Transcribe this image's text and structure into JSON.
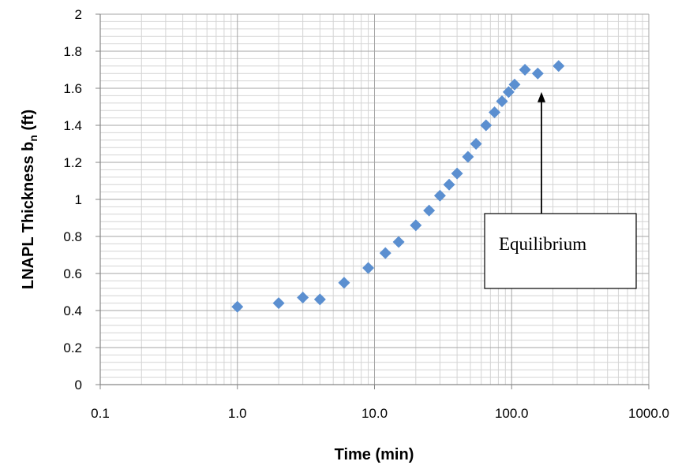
{
  "chart_data": {
    "type": "scatter",
    "x_scale": "log",
    "xlim": [
      0.1,
      1000
    ],
    "ylim": [
      0,
      2
    ],
    "grid": true,
    "marker": "diamond",
    "marker_color": "#5b8fd0",
    "xlabel": "Time (min)",
    "ylabel_main": "LNAPL Thickness b",
    "ylabel_sub": "n",
    "ylabel_unit": " (ft)",
    "x_tick_values": [
      0.1,
      1,
      10,
      100,
      1000
    ],
    "x_tick_labels": [
      "0.1",
      "1.0",
      "10.0",
      "100.0",
      "1000.0"
    ],
    "y_tick_values": [
      0,
      0.2,
      0.4,
      0.6,
      0.8,
      1,
      1.2,
      1.4,
      1.6,
      1.8,
      2
    ],
    "y_tick_labels": [
      "0",
      "0.2",
      "0.4",
      "0.6",
      "0.8",
      "1",
      "1.2",
      "1.4",
      "1.6",
      "1.8",
      "2"
    ],
    "points": [
      {
        "x": 1,
        "y": 0.42
      },
      {
        "x": 2,
        "y": 0.44
      },
      {
        "x": 3,
        "y": 0.47
      },
      {
        "x": 4,
        "y": 0.46
      },
      {
        "x": 6,
        "y": 0.55
      },
      {
        "x": 9,
        "y": 0.63
      },
      {
        "x": 12,
        "y": 0.71
      },
      {
        "x": 15,
        "y": 0.77
      },
      {
        "x": 20,
        "y": 0.86
      },
      {
        "x": 25,
        "y": 0.94
      },
      {
        "x": 30,
        "y": 1.02
      },
      {
        "x": 35,
        "y": 1.08
      },
      {
        "x": 40,
        "y": 1.14
      },
      {
        "x": 48,
        "y": 1.23
      },
      {
        "x": 55,
        "y": 1.3
      },
      {
        "x": 65,
        "y": 1.4
      },
      {
        "x": 75,
        "y": 1.47
      },
      {
        "x": 85,
        "y": 1.53
      },
      {
        "x": 95,
        "y": 1.58
      },
      {
        "x": 105,
        "y": 1.62
      },
      {
        "x": 125,
        "y": 1.7
      },
      {
        "x": 155,
        "y": 1.68
      },
      {
        "x": 220,
        "y": 1.72
      }
    ],
    "annotation": {
      "text": "Equilibrium",
      "arrow_target": {
        "x": 165,
        "y": 1.58
      }
    }
  }
}
